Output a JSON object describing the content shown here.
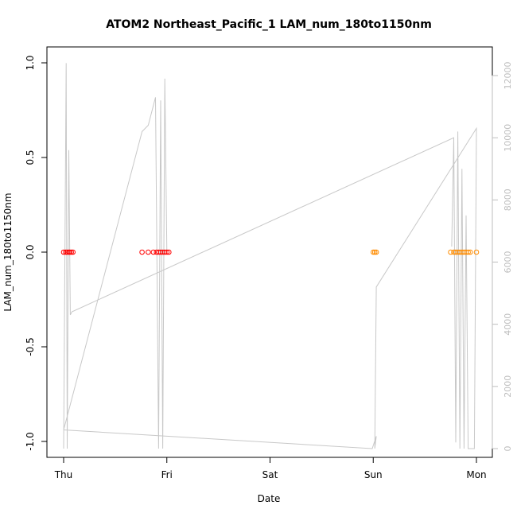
{
  "chart_data": {
    "type": "scatter",
    "title": "ATOM2 Northeast_Pacific_1 LAM_num_180to1150nm",
    "xlabel": "Date",
    "ylabel": "LAM_num_180to1150nm",
    "x_ticks": [
      "Thu",
      "Fri",
      "Sat",
      "Sun",
      "Mon"
    ],
    "x_tick_days": [
      0,
      1,
      2,
      3,
      4
    ],
    "xlim": [
      0,
      4
    ],
    "ylim": [
      -1.0,
      1.0
    ],
    "y_ticks": [
      "-1.0",
      "-0.5",
      "0.0",
      "0.5",
      "1.0"
    ],
    "y_tick_values": [
      -1.0,
      -0.5,
      0.0,
      0.5,
      1.0
    ],
    "y2lim": [
      0,
      12000
    ],
    "y2_ticks": [
      "0",
      "2000",
      "4000",
      "6000",
      "8000",
      "10000",
      "12000"
    ],
    "y2_tick_values": [
      0,
      2000,
      4000,
      6000,
      8000,
      10000,
      12000
    ],
    "colors": {
      "points_early": "#ff0000",
      "points_late": "#ff8c00",
      "line": "#c8c8c8",
      "axis": "#000000",
      "secondary_axis": "#bebebe"
    },
    "series": [
      {
        "color": "points_early",
        "x": [
          0.0,
          0.02,
          0.035,
          0.05,
          0.06,
          0.075,
          0.09,
          0.76,
          0.82,
          0.87,
          0.9,
          0.92,
          0.94,
          0.96,
          0.98,
          1.0,
          1.02
        ],
        "y": [
          0,
          0,
          0,
          0,
          0,
          0,
          0,
          0,
          0,
          0,
          0,
          0,
          0,
          0,
          0,
          0,
          0
        ]
      },
      {
        "color": "points_late",
        "x": [
          3.0,
          3.015,
          3.03,
          3.75,
          3.78,
          3.8,
          3.82,
          3.84,
          3.86,
          3.88,
          3.9,
          3.92,
          3.94,
          4.0
        ],
        "y": [
          0,
          0,
          0,
          0,
          0,
          0,
          0,
          0,
          0,
          0,
          0,
          0,
          0,
          0
        ]
      },
      {
        "color": "line",
        "axis": "secondary",
        "x": [
          0.0,
          0.025,
          0.035,
          0.05,
          0.065,
          0.08,
          3.78,
          3.76,
          3.78,
          3.8,
          3.82,
          3.84,
          3.86,
          3.88,
          3.9,
          3.92,
          3.94,
          3.96,
          3.98,
          4.0,
          3.03,
          3.015,
          3.03,
          2.99,
          0.0,
          0.76,
          0.82,
          0.89,
          0.92,
          0.94,
          0.96,
          0.98,
          1.0
        ],
        "y": [
          0,
          12400,
          0,
          9600,
          4300,
          4400,
          10000,
          6500,
          10000,
          200,
          10200,
          0,
          9000,
          0,
          7500,
          0,
          0,
          0,
          0,
          10300,
          5200,
          0,
          400,
          0,
          600,
          10200,
          10400,
          11300,
          0,
          11200,
          0,
          11900,
          6300
        ]
      }
    ]
  }
}
